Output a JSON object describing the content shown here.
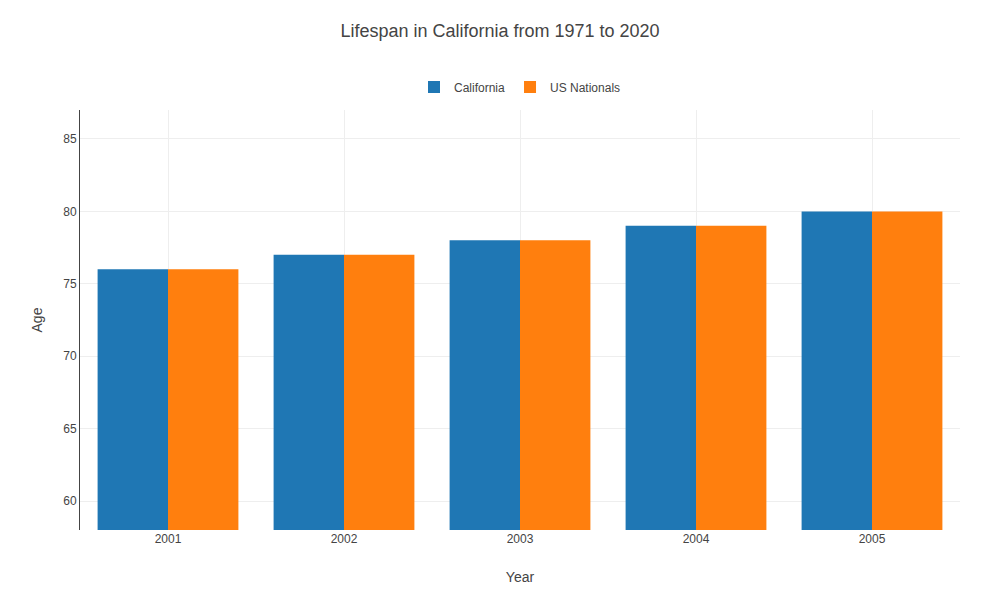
{
  "chart_data": {
    "type": "bar",
    "title": "Lifespan in California from 1971 to 2020",
    "xlabel": "Year",
    "ylabel": "Age",
    "categories": [
      "2001",
      "2002",
      "2003",
      "2004",
      "2005"
    ],
    "series": [
      {
        "name": "California",
        "values": [
          76.0,
          77.0,
          78.0,
          79.0,
          80.0
        ]
      },
      {
        "name": "US Nationals",
        "values": [
          76.0,
          77.0,
          78.0,
          79.0,
          80.0
        ]
      }
    ],
    "ylim": [
      58,
      87
    ],
    "yticks": [
      60,
      65,
      70,
      75,
      80,
      85
    ],
    "grid": true,
    "legend": "top"
  }
}
